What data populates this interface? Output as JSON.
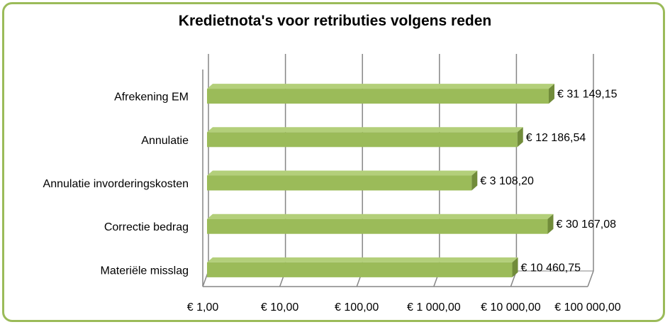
{
  "chart_data": {
    "type": "bar",
    "orientation": "horizontal",
    "title": "Kredietnota's voor retributies volgens reden",
    "xlabel": "",
    "ylabel": "",
    "x_scale": "log",
    "xlim": [
      1,
      100000
    ],
    "grid": true,
    "categories": [
      "Afrekening EM",
      "Annulatie",
      "Annulatie invorderingskosten",
      "Correctie bedrag",
      "Materiële misslag"
    ],
    "values": [
      31149.15,
      12186.54,
      3108.2,
      30167.08,
      10460.75
    ],
    "data_labels": [
      "€ 31 149,15",
      "€ 12 186,54",
      "€ 3 108,20",
      "€ 30 167,08",
      "€ 10 460,75"
    ],
    "tick_values": [
      1,
      10,
      100,
      1000,
      10000,
      100000
    ],
    "tick_labels": [
      "€  1,00",
      "€  10,00",
      "€  100,00",
      "€ 1 000,00",
      "€ 10 000,00",
      "€ 100 000,00"
    ],
    "colors": {
      "bar": "#9bbb59",
      "bar_top": "#b3cf7a",
      "bar_side": "#718c3a",
      "frame": "#9bbb59",
      "grid": "#868686"
    }
  }
}
